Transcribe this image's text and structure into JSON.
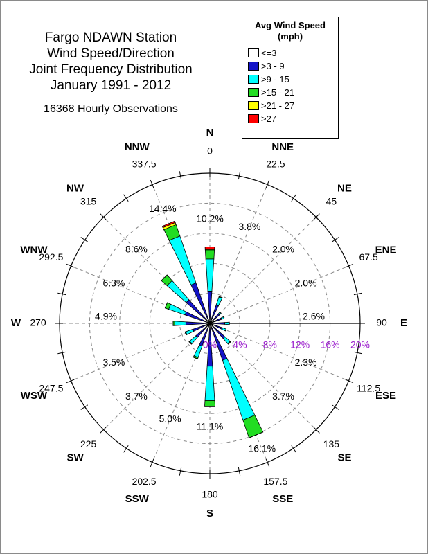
{
  "chart_data": {
    "type": "wind_rose",
    "title": [
      "Fargo NDAWN Station",
      "Wind Speed/Direction",
      "Joint Frequency Distribution",
      "January 1991 - 2012"
    ],
    "subtitle": "16368 Hourly Observations",
    "legend_title": "Avg Wind Speed (mph)",
    "categories": [
      "N",
      "NNE",
      "NE",
      "ENE",
      "E",
      "ESE",
      "SE",
      "SSE",
      "S",
      "SSW",
      "SW",
      "WSW",
      "W",
      "WNW",
      "NW",
      "NNW"
    ],
    "directions": [
      0,
      22.5,
      45,
      67.5,
      90,
      112.5,
      135,
      157.5,
      180,
      202.5,
      225,
      247.5,
      270,
      292.5,
      315,
      337.5
    ],
    "sector_totals": {
      "values": [
        10.2,
        3.8,
        2.0,
        2.0,
        2.6,
        2.3,
        3.7,
        16.1,
        11.1,
        5.0,
        3.7,
        3.5,
        4.9,
        6.3,
        8.6,
        14.4
      ],
      "value_labels": [
        "10.2%",
        "3.8%",
        "2.0%",
        "2.0%",
        "2.6%",
        "2.3%",
        "3.7%",
        "16.1%",
        "11.1%",
        "5.0%",
        "3.7%",
        "3.5%",
        "4.9%",
        "6.3%",
        "8.6%",
        "14.4%"
      ]
    },
    "series": [
      {
        "name": "<=3",
        "color": "#ffffff",
        "values": [
          0.2,
          0.2,
          0.2,
          0.2,
          0.2,
          0.2,
          0.2,
          0.3,
          0.2,
          0.2,
          0.2,
          0.2,
          0.2,
          0.2,
          0.2,
          0.2
        ]
      },
      {
        "name": ">3 - 9",
        "color": "#1414c8",
        "values": [
          4.1,
          2.4,
          1.5,
          1.5,
          1.8,
          1.6,
          2.5,
          4.9,
          5.5,
          3.0,
          2.3,
          2.2,
          3.0,
          3.3,
          4.0,
          5.5
        ]
      },
      {
        "name": ">9 - 15",
        "color": "#00ffff",
        "values": [
          4.3,
          1.1,
          0.3,
          0.3,
          0.6,
          0.5,
          0.9,
          8.4,
          4.6,
          1.6,
          1.1,
          1.0,
          1.5,
          2.3,
          3.4,
          6.6
        ]
      },
      {
        "name": ">15 - 21",
        "color": "#22dd22",
        "values": [
          1.2,
          0.1,
          0,
          0,
          0,
          0,
          0.1,
          2.5,
          0.8,
          0.2,
          0.1,
          0.1,
          0.2,
          0.5,
          1.0,
          1.6
        ]
      },
      {
        "name": ">21 - 27",
        "color": "#ffff00",
        "values": [
          0.1,
          0,
          0,
          0,
          0,
          0,
          0,
          0,
          0,
          0,
          0,
          0,
          0,
          0,
          0,
          0.3
        ]
      },
      {
        "name": ">27",
        "color": "#ff0000",
        "values": [
          0.3,
          0,
          0,
          0,
          0,
          0,
          0,
          0,
          0,
          0,
          0,
          0,
          0,
          0,
          0,
          0.2
        ]
      }
    ],
    "rlim": [
      0,
      20
    ],
    "rticks": [
      {
        "value": 0,
        "label": "0%"
      },
      {
        "value": 4,
        "label": "4%"
      },
      {
        "value": 8,
        "label": "8%"
      },
      {
        "value": 12,
        "label": "12%"
      },
      {
        "value": 16,
        "label": "16%"
      },
      {
        "value": 20,
        "label": "20%"
      }
    ],
    "grid": true
  }
}
